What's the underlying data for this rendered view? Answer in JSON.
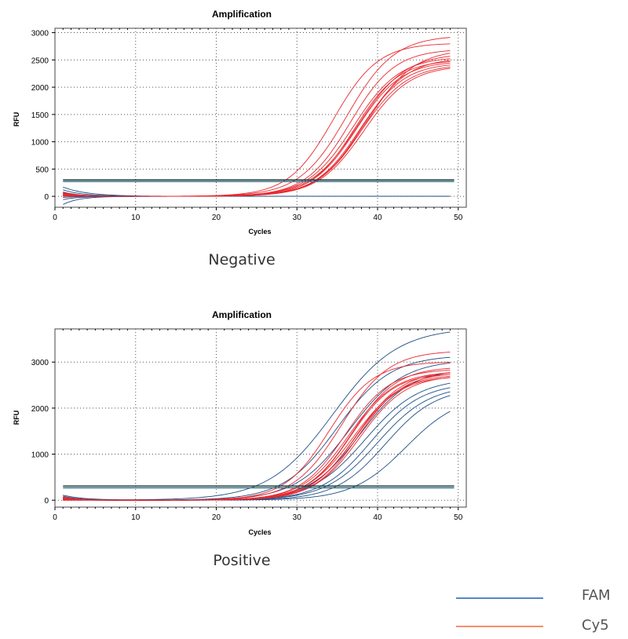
{
  "chart_data": [
    {
      "type": "line",
      "title": "Amplification",
      "xlabel": "Cycles",
      "ylabel": "RFU",
      "caption": "Negative",
      "xlim": [
        0,
        51
      ],
      "ylim": [
        -200,
        3080
      ],
      "xticks": [
        0,
        10,
        20,
        30,
        40,
        50
      ],
      "yticks": [
        0,
        500,
        1000,
        1500,
        2000,
        2500,
        3000
      ],
      "grid": true,
      "thresholds": [
        300,
        270
      ],
      "series": [
        {
          "channel": "Cy5",
          "color": "#e8282f",
          "values": [
            {
              "ct": 34.5,
              "plateau": 2810,
              "k": 0.36,
              "b0": 60,
              "d": 2
            },
            {
              "ct": 36.2,
              "plateau": 2950,
              "k": 0.34,
              "b0": 40,
              "d": 2
            },
            {
              "ct": 36.6,
              "plateau": 2700,
              "k": 0.36,
              "b0": 20,
              "d": 2
            },
            {
              "ct": 37.0,
              "plateau": 2560,
              "k": 0.35,
              "b0": 50,
              "d": 2
            },
            {
              "ct": 37.2,
              "plateau": 2500,
              "k": 0.37,
              "b0": 10,
              "d": 2
            },
            {
              "ct": 37.4,
              "plateau": 2480,
              "k": 0.36,
              "b0": 70,
              "d": 2
            },
            {
              "ct": 37.6,
              "plateau": 2620,
              "k": 0.34,
              "b0": 30,
              "d": 2
            },
            {
              "ct": 37.8,
              "plateau": 2450,
              "k": 0.36,
              "b0": 0,
              "d": 2
            },
            {
              "ct": 38.0,
              "plateau": 2420,
              "k": 0.35,
              "b0": 50,
              "d": 2
            },
            {
              "ct": 38.1,
              "plateau": 2540,
              "k": 0.36,
              "b0": 20,
              "d": 2
            },
            {
              "ct": 38.3,
              "plateau": 2400,
              "k": 0.35,
              "b0": 60,
              "d": 2
            },
            {
              "ct": 38.6,
              "plateau": 2700,
              "k": 0.34,
              "b0": 10,
              "d": 2
            }
          ]
        },
        {
          "channel": "FAM",
          "color": "#1f4e85",
          "values": [
            {
              "ct": 60,
              "plateau": 0,
              "k": 0.3,
              "b0": 170,
              "d": 3
            },
            {
              "ct": 60,
              "plateau": 0,
              "k": 0.3,
              "b0": 120,
              "d": 2.5
            },
            {
              "ct": 60,
              "plateau": 0,
              "k": 0.3,
              "b0": 80,
              "d": 2
            },
            {
              "ct": 60,
              "plateau": 0,
              "k": 0.3,
              "b0": -150,
              "d": 2
            },
            {
              "ct": 60,
              "plateau": 0,
              "k": 0.3,
              "b0": -60,
              "d": 2
            },
            {
              "ct": 60,
              "plateau": 0,
              "k": 0.3,
              "b0": 30,
              "d": 2
            },
            {
              "ct": 60,
              "plateau": 0,
              "k": 0.3,
              "b0": 0,
              "d": 2
            },
            {
              "ct": 60,
              "plateau": 0,
              "k": 0.3,
              "b0": -20,
              "d": 2
            }
          ]
        }
      ]
    },
    {
      "type": "line",
      "title": "Amplification",
      "xlabel": "Cycles",
      "ylabel": "RFU",
      "caption": "Positive",
      "xlim": [
        0,
        51
      ],
      "ylim": [
        -150,
        3720
      ],
      "xticks": [
        0,
        10,
        20,
        30,
        40,
        50
      ],
      "yticks": [
        0,
        1000,
        2000,
        3000
      ],
      "grid": true,
      "thresholds": [
        310,
        270
      ],
      "series": [
        {
          "channel": "Cy5",
          "color": "#e8282f",
          "values": [
            {
              "ct": 34.0,
              "plateau": 3010,
              "k": 0.36,
              "b0": 60,
              "d": 2
            },
            {
              "ct": 35.5,
              "plateau": 3250,
              "k": 0.34,
              "b0": 40,
              "d": 2
            },
            {
              "ct": 36.0,
              "plateau": 2850,
              "k": 0.36,
              "b0": 20,
              "d": 2
            },
            {
              "ct": 36.4,
              "plateau": 2800,
              "k": 0.35,
              "b0": 50,
              "d": 2
            },
            {
              "ct": 36.6,
              "plateau": 2760,
              "k": 0.37,
              "b0": 10,
              "d": 2
            },
            {
              "ct": 36.8,
              "plateau": 2900,
              "k": 0.36,
              "b0": 70,
              "d": 2
            },
            {
              "ct": 37.0,
              "plateau": 2740,
              "k": 0.34,
              "b0": 30,
              "d": 2
            },
            {
              "ct": 37.2,
              "plateau": 2700,
              "k": 0.36,
              "b0": 0,
              "d": 2
            },
            {
              "ct": 37.4,
              "plateau": 2820,
              "k": 0.35,
              "b0": 50,
              "d": 2
            },
            {
              "ct": 37.6,
              "plateau": 2780,
              "k": 0.36,
              "b0": 20,
              "d": 2
            },
            {
              "ct": 37.8,
              "plateau": 2720,
              "k": 0.35,
              "b0": 60,
              "d": 2
            }
          ]
        },
        {
          "channel": "FAM",
          "color": "#1f4e85",
          "values": [
            {
              "ct": 34.5,
              "plateau": 3750,
              "k": 0.25,
              "b0": 110,
              "d": 2.5
            },
            {
              "ct": 35.0,
              "plateau": 3150,
              "k": 0.3,
              "b0": 60,
              "d": 2
            },
            {
              "ct": 36.5,
              "plateau": 3050,
              "k": 0.3,
              "b0": 90,
              "d": 2
            },
            {
              "ct": 37.8,
              "plateau": 2850,
              "k": 0.32,
              "b0": 20,
              "d": 2
            },
            {
              "ct": 38.5,
              "plateau": 2650,
              "k": 0.3,
              "b0": 50,
              "d": 2
            },
            {
              "ct": 39.2,
              "plateau": 2550,
              "k": 0.32,
              "b0": 0,
              "d": 2
            },
            {
              "ct": 40.0,
              "plateau": 2500,
              "k": 0.31,
              "b0": 30,
              "d": 2
            },
            {
              "ct": 41.0,
              "plateau": 2450,
              "k": 0.32,
              "b0": 40,
              "d": 2
            },
            {
              "ct": 43.5,
              "plateau": 2300,
              "k": 0.3,
              "b0": 10,
              "d": 2
            }
          ]
        }
      ]
    }
  ],
  "legend": [
    {
      "label": "FAM",
      "color": "#1f5fb8"
    },
    {
      "label": "Cy5",
      "color": "#f26a3c"
    }
  ],
  "colors": {
    "threshold_dark": "#1a3a2e",
    "threshold_light": "#2f6a8a",
    "grid": "#555555"
  }
}
